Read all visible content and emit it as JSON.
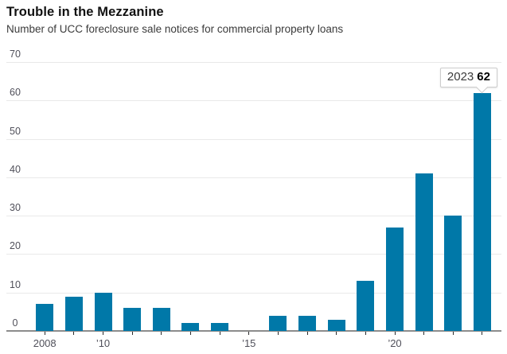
{
  "header": {
    "title": "Trouble in the Mezzanine",
    "subtitle": "Number of UCC foreclosure sale notices for commercial property loans"
  },
  "chart_data": {
    "type": "bar",
    "title": "Trouble in the Mezzanine",
    "subtitle": "Number of UCC foreclosure sale notices for commercial property loans",
    "categories": [
      2008,
      2009,
      2010,
      2011,
      2012,
      2013,
      2014,
      2015,
      2016,
      2017,
      2018,
      2019,
      2020,
      2021,
      2022,
      2023
    ],
    "values": [
      7,
      9,
      10,
      6,
      6,
      2,
      2,
      0,
      4,
      4,
      3,
      13,
      27,
      41,
      30,
      62
    ],
    "xlabel": "",
    "ylabel": "",
    "ylim": [
      0,
      70
    ],
    "y_ticks": [
      0,
      10,
      20,
      30,
      40,
      50,
      60,
      70
    ],
    "x_tick_labels": [
      {
        "year": 2008,
        "label": "2008"
      },
      {
        "year": 2010,
        "label": "’10"
      },
      {
        "year": 2015,
        "label": "’15"
      },
      {
        "year": 2020,
        "label": "’20"
      }
    ],
    "grid": "horizontal",
    "legend": "none",
    "annotation": {
      "year": "2023",
      "value": "62",
      "target_year": 2023
    }
  },
  "colors": {
    "bar": "#0078a8",
    "gridline": "#e9e9e9",
    "axis": "#8c8c8c",
    "tick": "#2b2b2b",
    "title": "#111111",
    "subtitle": "#3b3b3b",
    "axis_label": "#50505a",
    "callout_border": "#cccccc",
    "background": "#ffffff"
  }
}
